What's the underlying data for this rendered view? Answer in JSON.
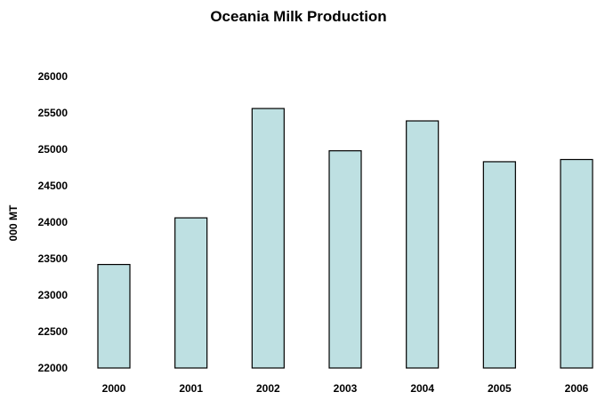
{
  "chart_data": {
    "type": "bar",
    "title": "Oceania Milk Production",
    "xlabel": "",
    "ylabel": "000 MT",
    "categories": [
      "2000",
      "2001",
      "2002",
      "2003",
      "2004",
      "2005",
      "2006"
    ],
    "values": [
      23420,
      24060,
      25560,
      24980,
      25390,
      24830,
      24860
    ],
    "ylim": [
      22000,
      26000
    ],
    "yticks": [
      "22000",
      "22500",
      "23000",
      "23500",
      "24000",
      "24500",
      "25000",
      "25500",
      "26000"
    ],
    "grid": false,
    "legend": "none",
    "colors": {
      "bar_fill": "#bee0e2",
      "bar_stroke": "#000000",
      "text": "#000000"
    }
  }
}
